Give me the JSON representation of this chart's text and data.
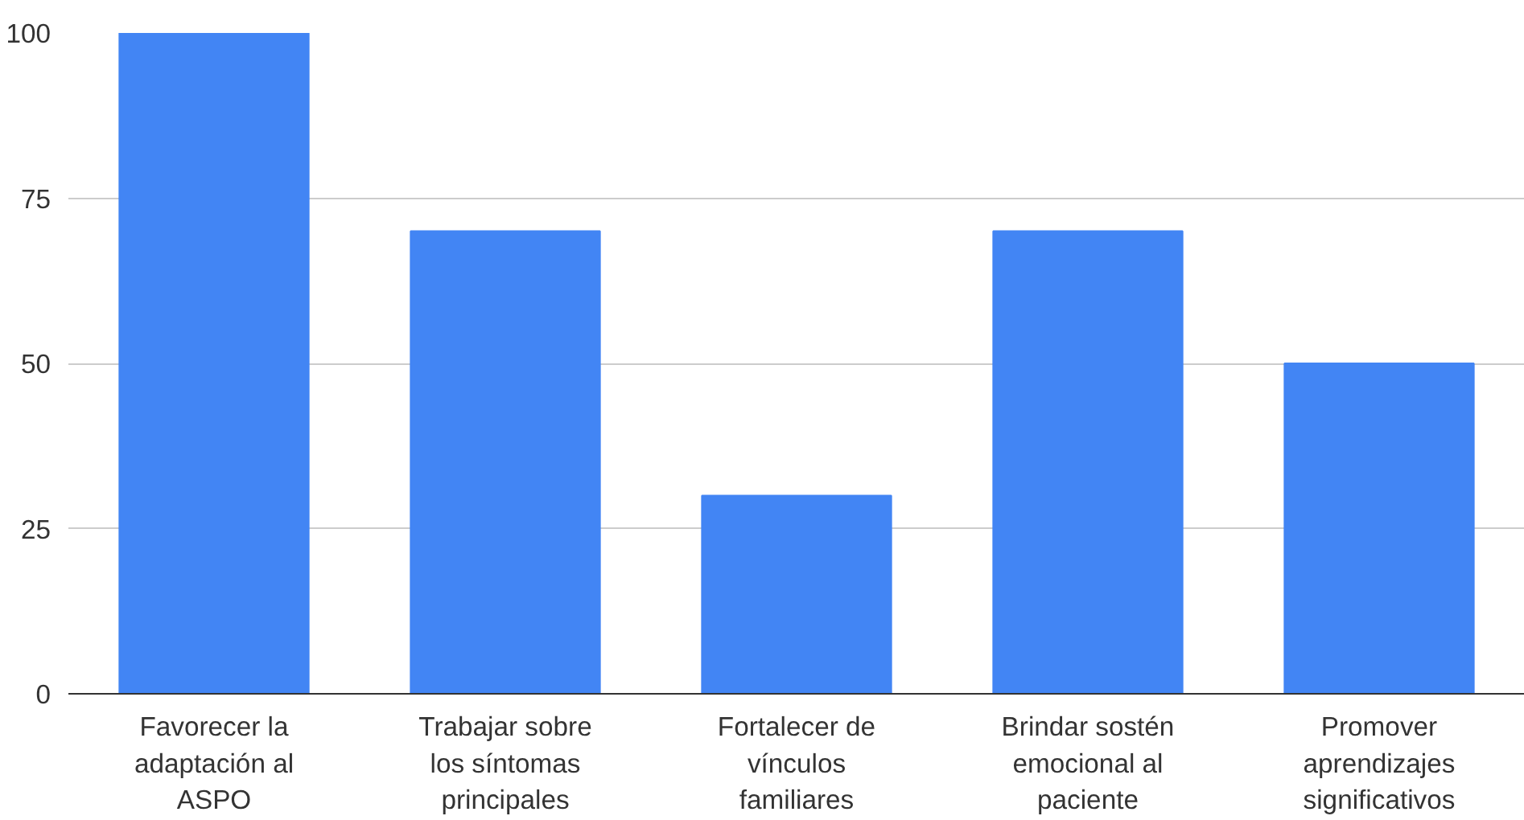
{
  "chart_data": {
    "type": "bar",
    "categories": [
      "Favorecer la adaptación al ASPO",
      "Trabajar sobre los síntomas principales",
      "Fortalecer de vínculos familiares",
      "Brindar sostén emocional al paciente",
      "Promover aprendizajes significativos"
    ],
    "values": [
      100,
      70,
      30,
      70,
      50
    ],
    "color": "#4285f4",
    "ylim": [
      0,
      100
    ],
    "yticks": [
      0,
      25,
      50,
      75,
      100
    ],
    "grid": "y"
  }
}
